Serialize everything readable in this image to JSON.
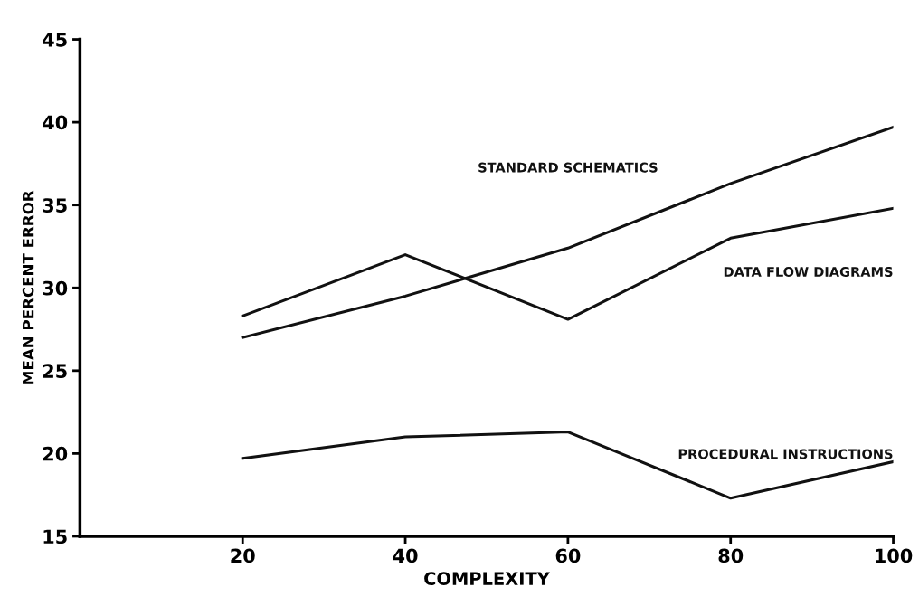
{
  "chart_data": {
    "type": "line",
    "xlabel": "COMPLEXITY",
    "ylabel": "MEAN PERCENT ERROR",
    "x": [
      20,
      40,
      60,
      80,
      100
    ],
    "series": [
      {
        "name": "STANDARD SCHEMATICS",
        "color": "#111111",
        "values": [
          27.0,
          29.5,
          32.4,
          36.3,
          39.7
        ]
      },
      {
        "name": "DATA FLOW DIAGRAMS",
        "color": "#111111",
        "values": [
          28.3,
          32.0,
          28.1,
          33.0,
          34.8
        ]
      },
      {
        "name": "PROCEDURAL INSTRUCTIONS",
        "color": "#111111",
        "values": [
          19.7,
          21.0,
          21.3,
          17.3,
          19.5
        ]
      }
    ],
    "xlim": [
      0,
      100
    ],
    "xticks": [
      20,
      40,
      60,
      80,
      100
    ],
    "ylim": [
      15,
      45
    ],
    "yticks": [
      15,
      20,
      25,
      30,
      35,
      40,
      45
    ],
    "grid": false,
    "legend": false,
    "marker": "none",
    "line_style": "solid"
  }
}
